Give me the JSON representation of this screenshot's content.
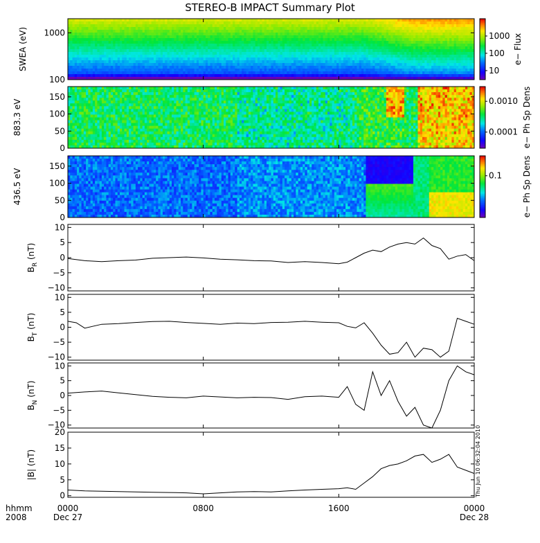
{
  "title": "STEREO-B IMPACT Summary Plot",
  "stamp": "Thu Jun 10 06:32:04 2010",
  "chart_data": [
    {
      "type": "heatmap",
      "id": "swea",
      "ylabel": "SWEA (eV)",
      "ylim": [
        100,
        2000
      ],
      "yscale": "log",
      "yticks": [
        {
          "v": 1000,
          "label": "1000"
        },
        {
          "v": 100,
          "label": "100"
        }
      ],
      "colorbar": {
        "label": "e− Flux",
        "scale": "log",
        "range": [
          3,
          10000
        ],
        "ticks": [
          {
            "v": 1000,
            "label": "1000"
          },
          {
            "v": 100,
            "label": "100"
          },
          {
            "v": 10,
            "label": "10"
          }
        ]
      },
      "seed": 11
    },
    {
      "type": "heatmap",
      "id": "pad883",
      "ylabel": "883.3 eV",
      "ylim": [
        0,
        180
      ],
      "yticks": [
        {
          "v": 150,
          "label": "150"
        },
        {
          "v": 100,
          "label": "100"
        },
        {
          "v": 50,
          "label": "50"
        },
        {
          "v": 0,
          "label": "0"
        }
      ],
      "colorbar": {
        "label": "e− Ph Sp Dens",
        "scale": "log",
        "range": [
          3e-05,
          0.003
        ],
        "ticks": [
          {
            "v": 0.001,
            "label": "0.0010"
          },
          {
            "v": 0.0001,
            "label": "0.0001"
          }
        ]
      },
      "seed": 23
    },
    {
      "type": "heatmap",
      "id": "pad436",
      "ylabel": "436.5 eV",
      "ylim": [
        0,
        180
      ],
      "yticks": [
        {
          "v": 150,
          "label": "150"
        },
        {
          "v": 100,
          "label": "100"
        },
        {
          "v": 50,
          "label": "50"
        },
        {
          "v": 0,
          "label": "0"
        }
      ],
      "colorbar": {
        "label": "e− Ph Sp Dens",
        "scale": "log",
        "range": [
          0.01,
          0.3
        ],
        "ticks": [
          {
            "v": 0.1,
            "label": "0.1"
          }
        ]
      },
      "seed": 37
    },
    {
      "type": "line",
      "id": "br",
      "ylabel": "B",
      "ysub": "R",
      "yunit": " (nT)",
      "ylim": [
        -11,
        11
      ],
      "yticks": [
        {
          "v": 10,
          "label": "10"
        },
        {
          "v": 5,
          "label": "5"
        },
        {
          "v": 0,
          "label": "0"
        },
        {
          "v": -5,
          "label": "−5"
        },
        {
          "v": -10,
          "label": "−10"
        }
      ],
      "series": [
        {
          "x": [
            0,
            1,
            2,
            3,
            4,
            5,
            6,
            7,
            8,
            9,
            10,
            11,
            12,
            13,
            14,
            15,
            16,
            16.5,
            17,
            17.5,
            18,
            18.5,
            19,
            19.5,
            20,
            20.5,
            21,
            21.5,
            22,
            22.5,
            23,
            23.5,
            24
          ],
          "y": [
            -0.3,
            -1.0,
            -1.3,
            -1.0,
            -0.8,
            -0.2,
            0.0,
            0.2,
            -0.1,
            -0.5,
            -0.7,
            -1.0,
            -1.1,
            -1.6,
            -1.3,
            -1.6,
            -2.0,
            -1.5,
            0.0,
            1.5,
            2.5,
            2.0,
            3.5,
            4.5,
            5.0,
            4.5,
            6.5,
            4.0,
            3.0,
            -0.5,
            0.5,
            1.0,
            -1.0
          ]
        }
      ]
    },
    {
      "type": "line",
      "id": "bt",
      "ylabel": "B",
      "ysub": "T",
      "yunit": " (nT)",
      "ylim": [
        -11,
        11
      ],
      "yticks": [
        {
          "v": 10,
          "label": "10"
        },
        {
          "v": 5,
          "label": "5"
        },
        {
          "v": 0,
          "label": "0"
        },
        {
          "v": -5,
          "label": "−5"
        },
        {
          "v": -10,
          "label": "−10"
        }
      ],
      "series": [
        {
          "x": [
            0,
            0.5,
            1,
            2,
            3,
            4,
            5,
            6,
            7,
            8,
            9,
            10,
            11,
            12,
            13,
            14,
            15,
            16,
            16.5,
            17,
            17.5,
            18,
            18.5,
            19,
            19.5,
            20,
            20.5,
            21,
            21.5,
            22,
            22.5,
            23,
            23.5,
            24
          ],
          "y": [
            2.0,
            1.5,
            -0.3,
            1.0,
            1.2,
            1.6,
            1.9,
            2.0,
            1.6,
            1.3,
            1.0,
            1.4,
            1.2,
            1.6,
            1.7,
            2.0,
            1.7,
            1.5,
            0.3,
            -0.2,
            1.5,
            -2.0,
            -6.0,
            -9.0,
            -8.5,
            -5.0,
            -10.0,
            -7.0,
            -7.5,
            -10.0,
            -8.0,
            3.0,
            2.0,
            1.0
          ]
        }
      ]
    },
    {
      "type": "line",
      "id": "bn",
      "ylabel": "B",
      "ysub": "N",
      "yunit": " (nT)",
      "ylim": [
        -11,
        11
      ],
      "yticks": [
        {
          "v": 10,
          "label": "10"
        },
        {
          "v": 5,
          "label": "5"
        },
        {
          "v": 0,
          "label": "0"
        },
        {
          "v": -5,
          "label": "−5"
        },
        {
          "v": -10,
          "label": "−10"
        }
      ],
      "series": [
        {
          "x": [
            0,
            1,
            2,
            3,
            4,
            5,
            6,
            7,
            8,
            9,
            10,
            11,
            12,
            13,
            14,
            15,
            16,
            16.5,
            17,
            17.5,
            18,
            18.5,
            19,
            19.5,
            20,
            20.5,
            21,
            21.5,
            22,
            22.5,
            23,
            23.5,
            24
          ],
          "y": [
            0.8,
            1.2,
            1.5,
            0.9,
            0.3,
            -0.3,
            -0.6,
            -0.8,
            -0.2,
            -0.5,
            -0.8,
            -0.6,
            -0.7,
            -1.3,
            -0.4,
            -0.2,
            -0.6,
            3.0,
            -3.0,
            -5.0,
            8.0,
            0.0,
            5.0,
            -2.0,
            -7.0,
            -4.0,
            -10.0,
            -11.0,
            -5.0,
            5.0,
            10.0,
            8.0,
            7.0
          ]
        }
      ]
    },
    {
      "type": "line",
      "id": "bmag",
      "ylabel": "|B|",
      "ysub": "",
      "yunit": " (nT)",
      "ylim": [
        -0.5,
        20
      ],
      "yticks": [
        {
          "v": 20,
          "label": "20"
        },
        {
          "v": 15,
          "label": "15"
        },
        {
          "v": 10,
          "label": "10"
        },
        {
          "v": 5,
          "label": "5"
        },
        {
          "v": 0,
          "label": "0"
        }
      ],
      "series": [
        {
          "x": [
            0,
            1,
            2,
            3,
            4,
            5,
            6,
            7,
            8,
            9,
            10,
            11,
            12,
            13,
            14,
            15,
            16,
            16.5,
            17,
            17.5,
            18,
            18.5,
            19,
            19.5,
            20,
            20.5,
            21,
            21.5,
            22,
            22.5,
            23,
            23.5,
            24
          ],
          "y": [
            1.8,
            1.5,
            1.4,
            1.3,
            1.2,
            1.1,
            1.0,
            0.9,
            0.6,
            0.9,
            1.2,
            1.3,
            1.2,
            1.5,
            1.8,
            2.0,
            2.2,
            2.5,
            2.0,
            4.0,
            6.0,
            8.5,
            9.5,
            10.0,
            11.0,
            12.5,
            13.0,
            10.5,
            11.5,
            13.0,
            9.0,
            8.0,
            7.0
          ]
        }
      ]
    }
  ],
  "x_axis": {
    "row1_label": "hhmm",
    "row2_label": "2008",
    "ticks": [
      {
        "v": 0,
        "label": "0000",
        "date": "Dec 27"
      },
      {
        "v": 8,
        "label": "0800",
        "date": ""
      },
      {
        "v": 16,
        "label": "1600",
        "date": ""
      },
      {
        "v": 24,
        "label": "0000",
        "date": "Dec 28"
      }
    ],
    "xlim": [
      0,
      24
    ]
  }
}
